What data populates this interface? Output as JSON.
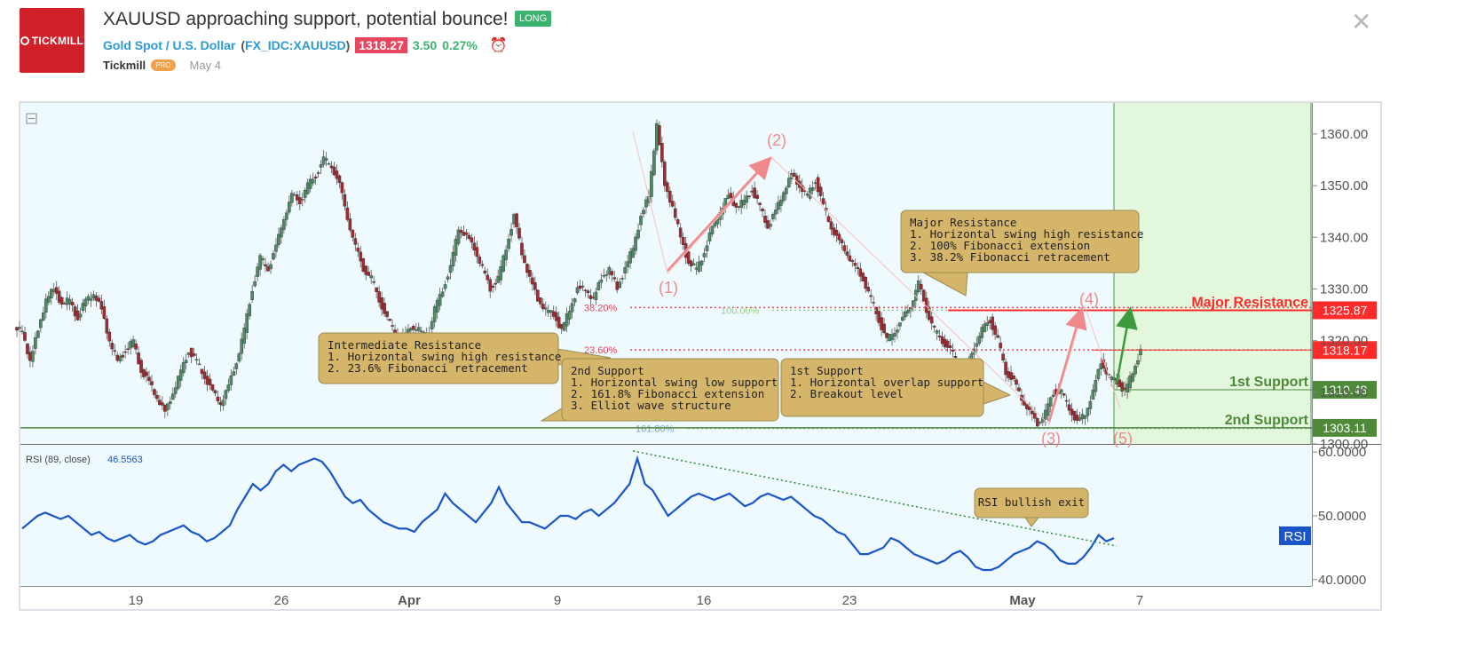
{
  "header": {
    "logo_text": "TICKMILL",
    "title": "XAUUSD approaching support, potential bounce!",
    "badge": "LONG",
    "symbol_name": "Gold Spot / U.S. Dollar",
    "symbol_code_open": "(",
    "symbol_code": "FX_IDC:XAUUSD",
    "symbol_code_close": ")",
    "price": "1318.27",
    "change": "3.50",
    "change_pct": "0.27%",
    "author": "Tickmill",
    "author_badge": "PRO",
    "date": "May 4",
    "alarm_icon": "alarm-clock-icon",
    "close_icon": "close-icon"
  },
  "colors": {
    "up": "#4f8a64",
    "down": "#a02a30",
    "bg_chart": "#effaff",
    "resistance": "#ff2b2b",
    "support": "#4e8a3a",
    "rsi": "#1a55c8",
    "annotation_bg": "#d5b56a",
    "projection_bg": "#e3f7dd"
  },
  "chart_data": [
    {
      "type": "candlestick",
      "ylim": [
        1300,
        1366
      ],
      "y_ticks": [
        "1360.00",
        "1350.00",
        "1340.00",
        "1330.00",
        "1320.00",
        "1310.00",
        "1300.00"
      ],
      "x_ticks": [
        "19",
        "26",
        "Apr",
        "9",
        "16",
        "23",
        "May",
        "7"
      ],
      "close_series": [
        1322,
        1316,
        1322,
        1328,
        1330,
        1327,
        1328,
        1324,
        1328,
        1329,
        1326,
        1320,
        1316,
        1318,
        1320,
        1314,
        1312,
        1309,
        1306,
        1310,
        1314,
        1318,
        1316,
        1313,
        1310,
        1308,
        1311,
        1316,
        1322,
        1330,
        1336,
        1334,
        1338,
        1344,
        1348,
        1347,
        1350,
        1352,
        1355,
        1354,
        1350,
        1344,
        1338,
        1334,
        1332,
        1328,
        1324,
        1322,
        1320,
        1323,
        1322,
        1320,
        1326,
        1330,
        1334,
        1342,
        1340,
        1338,
        1334,
        1330,
        1332,
        1338,
        1344,
        1337,
        1332,
        1328,
        1326,
        1325,
        1322,
        1326,
        1330,
        1330,
        1328,
        1332,
        1334,
        1330,
        1334,
        1338,
        1344,
        1348,
        1362,
        1350,
        1346,
        1340,
        1335,
        1334,
        1337,
        1342,
        1345,
        1348,
        1346,
        1347,
        1349,
        1346,
        1342,
        1345,
        1349,
        1352,
        1350,
        1348,
        1351,
        1346,
        1342,
        1339,
        1337,
        1334,
        1332,
        1328,
        1324,
        1320,
        1322,
        1324,
        1327,
        1331,
        1326,
        1322,
        1320,
        1318,
        1316,
        1314,
        1319,
        1322,
        1324,
        1320,
        1314,
        1312,
        1309,
        1306,
        1304,
        1306,
        1310,
        1310,
        1307,
        1304,
        1306,
        1310,
        1316,
        1313,
        1312,
        1310,
        1314,
        1318
      ],
      "fib_levels": [
        {
          "label": "38.20%",
          "value": 1326.4
        },
        {
          "label": "23.60%",
          "value": 1318.2
        },
        {
          "label": "100.00%",
          "value": 1325.9
        },
        {
          "label": "161.80%",
          "value": 1303.0
        }
      ],
      "levels": [
        {
          "name": "Major Resistance",
          "value": "1325.87",
          "color": "#ff2b2b"
        },
        {
          "name": "",
          "value": "1318.17",
          "color": "#ff2b2b"
        },
        {
          "name": "1st Support",
          "value": "1310.48",
          "color": "#4e8a3a"
        },
        {
          "name": "2nd Support",
          "value": "1303.11",
          "color": "#4e8a3a"
        }
      ],
      "wave_labels": [
        "(1)",
        "(2)",
        "(3)",
        "(4)",
        "(5)"
      ],
      "annotations": [
        {
          "title": "Major Resistance",
          "lines": [
            "1. Horizontal swing high resistance",
            "2. 100% Fibonacci extension",
            "3. 38.2% Fibonacci retracement"
          ]
        },
        {
          "title": "Intermediate Resistance",
          "lines": [
            "1. Horizontal swing high resistance",
            "2. 23.6% Fibonacci retracement"
          ]
        },
        {
          "title": "2nd Support",
          "lines": [
            "1. Horizontal swing low support",
            "2. 161.8% Fibonacci extension",
            "3. Elliot wave structure"
          ]
        },
        {
          "title": "1st Support",
          "lines": [
            "1. Horizontal overlap support",
            "2. Breakout level"
          ]
        }
      ]
    },
    {
      "type": "line",
      "title": "RSI (89, close)",
      "last_value": "46.5563",
      "badge": "RSI",
      "ylim": [
        39,
        61
      ],
      "y_ticks": [
        "60.0000",
        "50.0000",
        "40.0000"
      ],
      "annotation": "RSI bullish exit",
      "values": [
        48,
        49,
        50,
        50.5,
        50,
        49.5,
        50,
        49,
        48,
        47,
        47.5,
        46.5,
        46,
        46.5,
        47,
        46,
        45.5,
        46,
        47,
        47.5,
        48,
        48.5,
        47.5,
        47,
        46,
        46.5,
        47.5,
        48.5,
        51,
        53,
        55,
        54,
        55,
        57,
        58,
        57,
        58,
        58.5,
        59,
        58.5,
        57,
        55,
        53,
        52,
        52.5,
        51,
        50,
        49,
        48.5,
        48,
        48,
        47.5,
        49,
        50,
        51,
        53.5,
        52,
        51,
        50,
        49,
        50.5,
        52,
        54.5,
        52,
        50.5,
        49,
        49,
        48.5,
        48,
        49,
        50,
        50,
        49.5,
        50.5,
        51,
        50,
        51,
        52,
        53.5,
        55,
        59,
        55,
        54,
        52,
        50,
        51,
        52,
        53,
        53.5,
        53,
        52.5,
        53,
        53.5,
        52.5,
        51.5,
        52,
        53,
        53.5,
        53,
        52.5,
        53,
        52,
        51,
        50,
        49.5,
        48.5,
        47.5,
        47,
        45.5,
        44,
        44,
        44.5,
        45,
        46.5,
        46,
        45,
        44,
        43.5,
        43,
        42.5,
        43,
        44,
        44.5,
        43.5,
        42,
        41.5,
        41.5,
        42,
        43,
        44,
        44.5,
        45,
        46,
        45.5,
        44.5,
        43,
        42.5,
        42.5,
        43.5,
        45,
        47,
        46,
        46.5
      ]
    }
  ]
}
